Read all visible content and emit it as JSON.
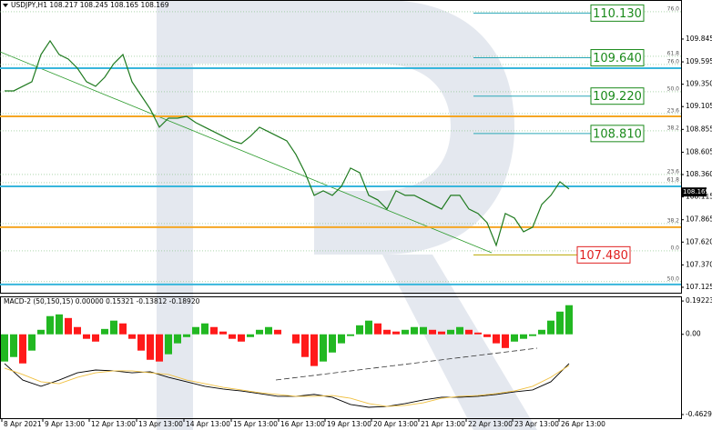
{
  "chart_data": [
    {
      "type": "line",
      "title": "USDJPY,H1  108.217 108.245 108.165 108.169",
      "x": [
        0,
        1,
        2,
        3,
        4,
        5,
        6,
        7,
        8,
        9,
        10,
        11,
        12,
        13,
        14,
        15,
        16,
        17,
        18,
        19,
        20,
        21,
        22,
        23,
        24,
        25,
        26,
        27,
        28,
        29,
        30,
        31,
        32,
        33,
        34,
        35,
        36,
        37,
        38,
        39,
        40,
        41,
        42,
        43,
        44,
        45,
        46,
        47,
        48,
        49,
        50,
        51,
        52,
        53,
        54,
        55,
        56,
        57,
        58,
        59,
        60,
        61,
        62
      ],
      "series": [
        {
          "color": "#1f7a1f",
          "values": [
            109.277,
            109.277,
            109.327,
            109.377,
            109.675,
            109.825,
            109.675,
            109.626,
            109.526,
            109.377,
            109.327,
            109.426,
            109.576,
            109.675,
            109.377,
            109.227,
            109.078,
            108.879,
            108.978,
            108.978,
            108.998,
            108.929,
            108.879,
            108.829,
            108.779,
            108.729,
            108.699,
            108.779,
            108.879,
            108.829,
            108.779,
            108.729,
            108.58,
            108.381,
            108.132,
            108.182,
            108.132,
            108.231,
            108.431,
            108.381,
            108.132,
            108.082,
            107.982,
            108.182,
            108.132,
            108.132,
            108.082,
            108.032,
            107.982,
            108.132,
            108.132,
            107.982,
            107.933,
            107.833,
            107.584,
            107.933,
            107.883,
            107.733,
            107.783,
            108.032,
            108.132,
            108.281,
            108.202
          ]
        }
      ],
      "xlim": [
        -0.5,
        74.3
      ],
      "xticks": [
        {
          "value": -0.3,
          "label": "8 Apr 2021"
        },
        {
          "value": 4.2,
          "label": "9 Apr 13:00"
        },
        {
          "value": 9.3,
          "label": "12 Apr 13:00"
        },
        {
          "value": 14.5,
          "label": "13 Apr 13:00"
        },
        {
          "value": 19.7,
          "label": "14 Apr 13:00"
        },
        {
          "value": 24.9,
          "label": "15 Apr 13:00"
        },
        {
          "value": 30.1,
          "label": "16 Apr 13:00"
        },
        {
          "value": 35.2,
          "label": "19 Apr 13:00"
        },
        {
          "value": 40.3,
          "label": "20 Apr 13:00"
        },
        {
          "value": 45.5,
          "label": "21 Apr 13:00"
        },
        {
          "value": 50.7,
          "label": "22 Apr 13:00"
        },
        {
          "value": 55.8,
          "label": "23 Apr 13:00"
        },
        {
          "value": 60.9,
          "label": "26 Apr 13:00"
        }
      ],
      "ylim": [
        107.065,
        110.273
      ],
      "yticks": [
        109.845,
        109.595,
        {
          "value": 109.35,
          "label": "109.350"
        },
        109.105,
        108.855,
        108.605,
        {
          "value": 108.36,
          "label": "108.360"
        },
        108.115,
        107.865,
        {
          "value": 107.62,
          "label": "107.620"
        },
        {
          "value": 107.37,
          "label": "107.370"
        },
        107.125
      ],
      "fib_levels": [
        {
          "label": "76.0",
          "value": 110.144
        },
        {
          "label": "61.8",
          "value": 109.656
        },
        {
          "label": "76.0",
          "value": 109.566
        },
        {
          "label": "50.0",
          "value": 109.267
        },
        {
          "label": "23.6",
          "value": 109.028
        },
        {
          "label": "38.2",
          "value": 108.839
        },
        {
          "label": "23.6",
          "value": 108.361
        },
        {
          "label": "61.8",
          "value": 108.271
        },
        {
          "label": "38.2",
          "value": 107.823
        },
        {
          "label": "0.0",
          "value": 107.524
        },
        {
          "label": "50.0",
          "value": 107.186
        }
      ],
      "hlines": [
        {
          "value": 109.526,
          "color": "#38b6dc"
        },
        {
          "value": 108.998,
          "color": "#f5a623"
        },
        {
          "value": 108.231,
          "color": "#38b6dc"
        },
        {
          "value": 107.783,
          "color": "#f5a623"
        },
        {
          "value": 107.156,
          "color": "#38b6dc"
        }
      ],
      "price_boxes": [
        {
          "value": 110.13,
          "label": "110.130",
          "color": "#1a8a1a"
        },
        {
          "value": 109.64,
          "label": "109.640",
          "color": "#1a8a1a"
        },
        {
          "value": 109.22,
          "label": "109.220",
          "color": "#1a8a1a"
        },
        {
          "value": 108.81,
          "label": "108.810",
          "color": "#1a8a1a"
        },
        {
          "value": 107.48,
          "label": "107.480",
          "color": "#e02020"
        }
      ],
      "current_price": 108.169
    },
    {
      "type": "bar",
      "title": "MACD-2 (50,150,15) 0.00000 0.15321 -0.13812 -0.18920",
      "x": [
        0,
        1,
        2,
        3,
        4,
        5,
        6,
        7,
        8,
        9,
        10,
        11,
        12,
        13,
        14,
        15,
        16,
        17,
        18,
        19,
        20,
        21,
        22,
        23,
        24,
        25,
        26,
        27,
        28,
        29,
        30,
        31,
        32,
        33,
        34,
        35,
        36,
        37,
        38,
        39,
        40,
        41,
        42,
        43,
        44,
        45,
        46,
        47,
        48,
        49,
        50,
        51,
        52,
        53,
        54,
        55,
        56,
        57,
        58,
        59,
        60,
        61,
        62
      ],
      "values": [
        -0.157,
        -0.131,
        -0.168,
        -0.094,
        0.026,
        0.105,
        0.115,
        0.094,
        0.042,
        -0.026,
        -0.042,
        0.031,
        0.079,
        0.063,
        -0.026,
        -0.094,
        -0.147,
        -0.157,
        -0.115,
        -0.052,
        -0.016,
        0.042,
        0.063,
        0.042,
        0.016,
        -0.026,
        -0.042,
        -0.016,
        0.026,
        0.042,
        0.026,
        0,
        -0.052,
        -0.131,
        -0.183,
        -0.157,
        -0.105,
        -0.052,
        -0.01,
        0.052,
        0.079,
        0.063,
        0.026,
        0.016,
        0.026,
        0.042,
        0.042,
        0.026,
        0.016,
        0.026,
        0.042,
        0.026,
        0.01,
        -0.016,
        -0.052,
        -0.079,
        -0.042,
        -0.026,
        -0.01,
        0.026,
        0.079,
        0.131,
        0.168
      ],
      "up_color": "#22b822",
      "down_color": "#ff1a1a",
      "lines": [
        {
          "color": "#000000",
          "x": [
            0,
            2,
            4,
            6,
            8,
            10,
            12,
            14,
            16,
            18,
            20,
            22,
            24,
            26,
            28,
            30,
            32,
            34,
            36,
            38,
            40,
            42,
            44,
            46,
            48,
            50,
            52,
            54,
            56,
            58,
            60,
            62
          ],
          "values": [
            -0.169,
            -0.264,
            -0.3,
            -0.264,
            -0.222,
            -0.206,
            -0.211,
            -0.222,
            -0.216,
            -0.248,
            -0.274,
            -0.3,
            -0.316,
            -0.327,
            -0.342,
            -0.358,
            -0.358,
            -0.347,
            -0.363,
            -0.405,
            -0.421,
            -0.416,
            -0.4,
            -0.379,
            -0.363,
            -0.363,
            -0.358,
            -0.347,
            -0.332,
            -0.321,
            -0.274,
            -0.169
          ]
        },
        {
          "color": "#f0c040",
          "x": [
            0,
            2,
            4,
            6,
            8,
            10,
            12,
            14,
            16,
            18,
            20,
            22,
            24,
            26,
            28,
            30,
            32,
            34,
            36,
            38,
            40,
            42,
            44,
            46,
            48,
            50,
            52,
            54,
            56,
            58,
            60,
            62
          ],
          "values": [
            -0.195,
            -0.232,
            -0.274,
            -0.285,
            -0.248,
            -0.222,
            -0.211,
            -0.211,
            -0.222,
            -0.232,
            -0.264,
            -0.285,
            -0.306,
            -0.321,
            -0.337,
            -0.347,
            -0.358,
            -0.358,
            -0.353,
            -0.369,
            -0.4,
            -0.416,
            -0.41,
            -0.395,
            -0.369,
            -0.358,
            -0.353,
            -0.342,
            -0.327,
            -0.3,
            -0.248,
            -0.18
          ]
        }
      ],
      "xlim": [
        -0.5,
        74.3
      ],
      "ylim": [
        -0.484,
        0.219
      ],
      "yticks": [
        0.19223,
        {
          "value": 0,
          "label": "0.00"
        },
        -0.46297
      ]
    }
  ]
}
